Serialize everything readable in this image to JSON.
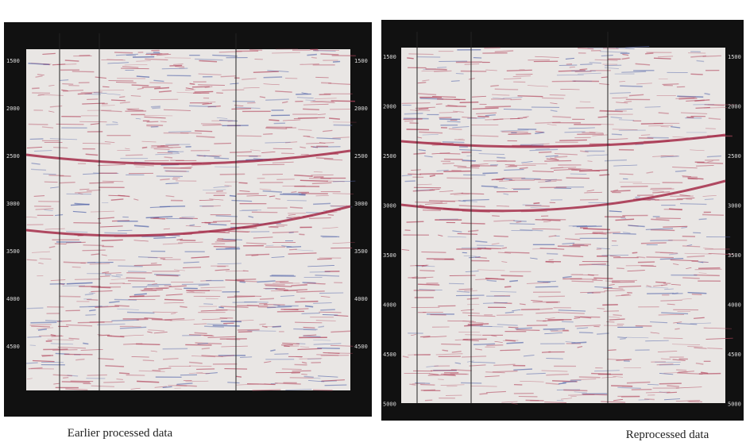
{
  "panels": [
    {
      "caption": "Earlier processed data",
      "depth_labels": [
        "1500",
        "2000",
        "2500",
        "3000",
        "3500",
        "4000",
        "4500"
      ]
    },
    {
      "caption": "Reprocessed data",
      "depth_labels": [
        "1500",
        "2000",
        "2500",
        "3000",
        "3500",
        "4000",
        "4500",
        "5000"
      ]
    }
  ]
}
